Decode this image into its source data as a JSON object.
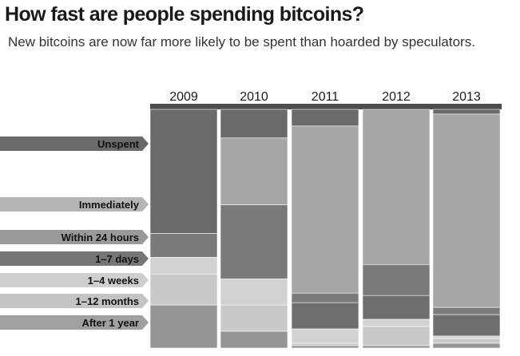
{
  "title": "How fast are people spending bitcoins?",
  "subtitle": "New bitcoins are now far more likely to be spent than hoarded by speculators.",
  "chart_data": {
    "type": "bar",
    "stacked": true,
    "normalized_percent": true,
    "orientation": "vertical",
    "categories": [
      "2009",
      "2010",
      "2011",
      "2012",
      "2013"
    ],
    "series": [
      {
        "name": "Unspent",
        "color": "#6a6a6a",
        "values": [
          52,
          12,
          7,
          0,
          2
        ]
      },
      {
        "name": "Immediately",
        "color": "#a6a6a6",
        "values": [
          0,
          28,
          70,
          65,
          81
        ]
      },
      {
        "name": "Within 24 hours",
        "color": "#7a7a7a",
        "values": [
          10,
          31,
          4,
          13,
          3
        ]
      },
      {
        "name": "1–7 days",
        "color": "#6e6e6e",
        "values": [
          0,
          0,
          11,
          10,
          9
        ]
      },
      {
        "name": "1–4 weeks",
        "color": "#d2d2d2",
        "values": [
          7,
          11,
          6,
          3,
          1
        ]
      },
      {
        "name": "1–12 months",
        "color": "#c9c9c9",
        "values": [
          13,
          11,
          1,
          8,
          2
        ]
      },
      {
        "name": "After 1 year",
        "color": "#959595",
        "values": [
          18,
          7,
          1,
          1,
          2
        ]
      }
    ],
    "legend": "left, stacked labels aligned to segments"
  }
}
